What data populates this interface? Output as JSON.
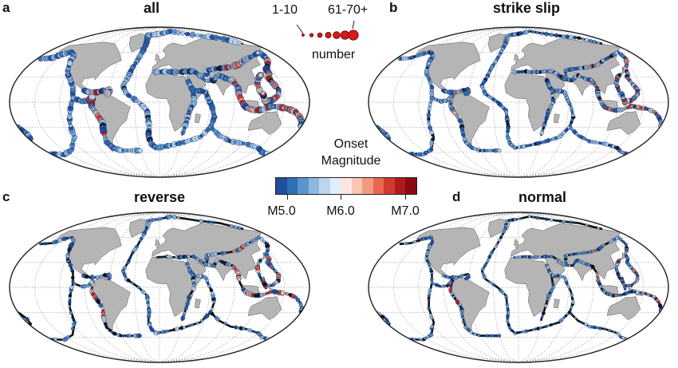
{
  "panels": [
    {
      "letter": "a",
      "title": "all",
      "style": "all"
    },
    {
      "letter": "b",
      "title": "strike slip",
      "style": "strike"
    },
    {
      "letter": "c",
      "title": "reverse",
      "style": "reverse"
    },
    {
      "letter": "d",
      "title": "normal",
      "style": "normal"
    }
  ],
  "size_legend": {
    "min_label": "1-10",
    "max_label": "61-70+",
    "caption": "number",
    "marker_color": "#d7191c"
  },
  "colorbar": {
    "title_line1": "Onset",
    "title_line2": "Magnitude",
    "colors": [
      "#1f4e9c",
      "#2f6fb5",
      "#5b95cf",
      "#8cb8e0",
      "#bcd6ee",
      "#e3eef8",
      "#fbe6df",
      "#f7c6b4",
      "#f19a80",
      "#e7684f",
      "#d23a2c",
      "#b01a1c",
      "#8a0a12"
    ],
    "ticks": [
      "M5.0",
      "M6.0",
      "M7.0"
    ]
  },
  "map_colors": {
    "ocean": "#ffffff",
    "land": "#b5b5b5",
    "boundary": "#111111",
    "grid": "#9a9a9a"
  }
}
